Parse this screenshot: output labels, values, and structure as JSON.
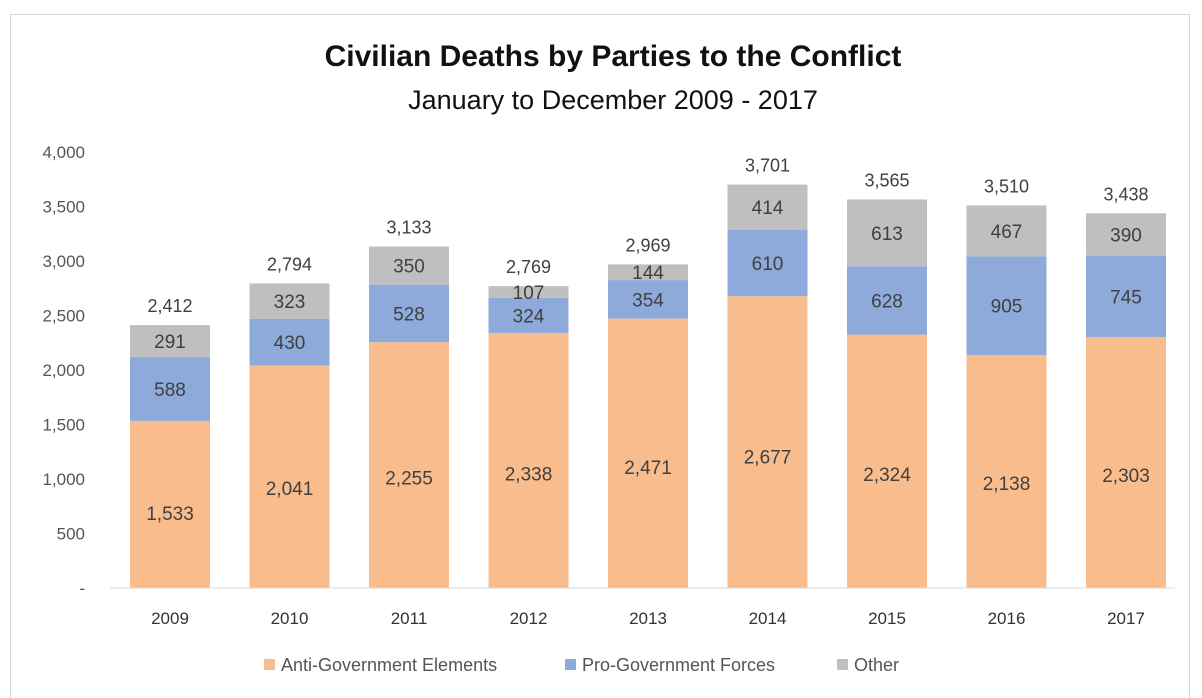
{
  "chart_data": {
    "type": "bar",
    "stacked": true,
    "title": "Civilian Deaths by Parties to the Conflict",
    "subtitle": "January to December  2009 - 2017",
    "categories": [
      "2009",
      "2010",
      "2011",
      "2012",
      "2013",
      "2014",
      "2015",
      "2016",
      "2017"
    ],
    "series": [
      {
        "name": "Anti-Government Elements",
        "color": "#f9bc8c",
        "values": [
          1533,
          2041,
          2255,
          2338,
          2471,
          2677,
          2324,
          2138,
          2303
        ]
      },
      {
        "name": "Pro-Government Forces",
        "color": "#8eaadb",
        "values": [
          588,
          430,
          528,
          324,
          354,
          610,
          628,
          905,
          745
        ]
      },
      {
        "name": "Other",
        "color": "#bfbfbf",
        "values": [
          291,
          323,
          350,
          107,
          144,
          414,
          613,
          467,
          390
        ]
      }
    ],
    "totals": [
      2412,
      2794,
      3133,
      2769,
      2969,
      3701,
      3565,
      3510,
      3438
    ],
    "ylim": [
      0,
      4000
    ],
    "yticks": [
      0,
      500,
      1000,
      1500,
      2000,
      2500,
      3000,
      3500,
      4000
    ],
    "ytick_labels": [
      "-",
      "500",
      "1,000",
      "1,500",
      "2,000",
      "2,500",
      "3,000",
      "3,500",
      "4,000"
    ],
    "grid": false,
    "legend_position": "bottom"
  }
}
